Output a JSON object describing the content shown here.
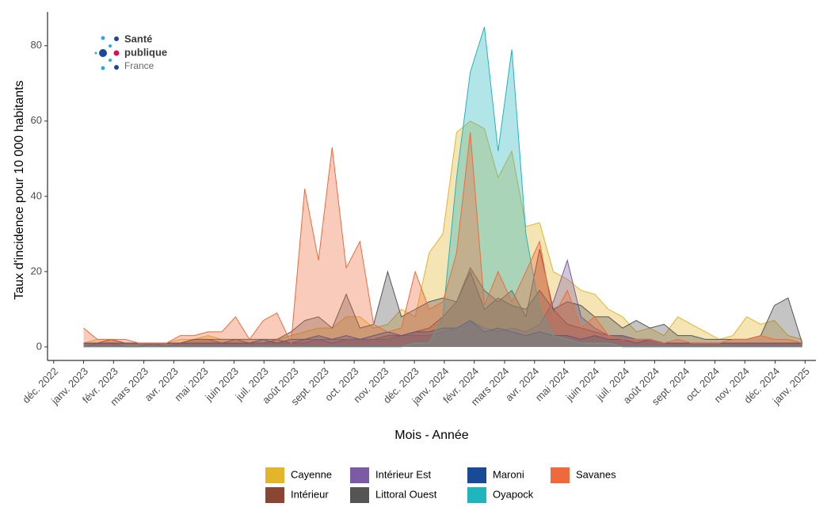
{
  "chart_data": {
    "type": "area",
    "logo": {
      "lines": [
        "Santé",
        "publique",
        "France"
      ]
    },
    "x_label": "Mois - Année",
    "y_label": "Taux d'incidence pour 10 000 habitants",
    "x": [
      2023.0,
      2023.038,
      2023.077,
      2023.115,
      2023.153,
      2023.192,
      2023.23,
      2023.268,
      2023.306,
      2023.345,
      2023.383,
      2023.421,
      2023.46,
      2023.498,
      2023.536,
      2023.575,
      2023.613,
      2023.651,
      2023.689,
      2023.728,
      2023.766,
      2023.804,
      2023.843,
      2023.881,
      2023.919,
      2023.958,
      2023.996,
      2024.034,
      2024.072,
      2024.111,
      2024.149,
      2024.187,
      2024.226,
      2024.264,
      2024.302,
      2024.341,
      2024.379,
      2024.417,
      2024.455,
      2024.494,
      2024.532,
      2024.57,
      2024.609,
      2024.647,
      2024.685,
      2024.724,
      2024.762,
      2024.8,
      2024.838,
      2024.877,
      2024.915,
      2024.953,
      2024.992
    ],
    "series": [
      {
        "name": "Cayenne",
        "color": "#e3b52a",
        "values": [
          1,
          2,
          2,
          1,
          1,
          1,
          1,
          2,
          2,
          3,
          2,
          2,
          2,
          2,
          2,
          3,
          4,
          5,
          5,
          8,
          8,
          5,
          6,
          10,
          8,
          25,
          30,
          57,
          60,
          58,
          45,
          52,
          32,
          33,
          20,
          18,
          15,
          14,
          10,
          8,
          4,
          5,
          3,
          8,
          6,
          4,
          2,
          3,
          8,
          6,
          7,
          3,
          2
        ]
      },
      {
        "name": "Intérieur",
        "color": "#8b4533",
        "values": [
          1,
          1,
          2,
          1,
          1,
          1,
          1,
          1,
          2,
          2,
          1,
          2,
          1,
          1,
          2,
          1,
          2,
          2,
          1,
          2,
          2,
          2,
          3,
          3,
          4,
          5,
          8,
          12,
          21,
          15,
          12,
          15,
          8,
          26,
          10,
          6,
          5,
          4,
          3,
          3,
          2,
          2,
          1,
          1,
          1,
          1,
          1,
          1,
          1,
          1,
          1,
          1,
          1
        ]
      },
      {
        "name": "Intérieur Est",
        "color": "#7b5ba6",
        "values": [
          0,
          1,
          1,
          0,
          0,
          1,
          0,
          1,
          1,
          1,
          1,
          1,
          1,
          1,
          1,
          1,
          1,
          2,
          2,
          2,
          2,
          2,
          2,
          3,
          3,
          3,
          4,
          5,
          7,
          5,
          4,
          5,
          4,
          6,
          12,
          23,
          8,
          5,
          3,
          3,
          2,
          2,
          1,
          1,
          1,
          1,
          1,
          1,
          1,
          1,
          1,
          1,
          1
        ]
      },
      {
        "name": "Littoral Ouest",
        "color": "#555555",
        "values": [
          1,
          1,
          1,
          1,
          1,
          1,
          1,
          1,
          2,
          2,
          2,
          2,
          2,
          2,
          2,
          4,
          7,
          8,
          5,
          14,
          5,
          6,
          20,
          8,
          10,
          12,
          13,
          12,
          20,
          10,
          13,
          11,
          10,
          15,
          10,
          12,
          11,
          8,
          8,
          5,
          7,
          5,
          6,
          3,
          3,
          2,
          2,
          2,
          2,
          3,
          11,
          13,
          1
        ]
      },
      {
        "name": "Maroni",
        "color": "#1a4a96",
        "values": [
          1,
          1,
          1,
          1,
          1,
          1,
          1,
          1,
          1,
          1,
          1,
          1,
          1,
          2,
          1,
          2,
          2,
          3,
          2,
          3,
          2,
          3,
          4,
          3,
          4,
          4,
          5,
          5,
          7,
          4,
          5,
          4,
          3,
          4,
          3,
          3,
          2,
          3,
          2,
          2,
          1,
          2,
          1,
          1,
          1,
          1,
          1,
          1,
          1,
          1,
          1,
          1,
          1
        ]
      },
      {
        "name": "Oyapock",
        "color": "#1fb5bd",
        "values": [
          0,
          0,
          0,
          0,
          0,
          0,
          0,
          0,
          0,
          0,
          0,
          0,
          0,
          0,
          0,
          0,
          0,
          0,
          0,
          0,
          0,
          0,
          0,
          0,
          1,
          1,
          8,
          45,
          73,
          85,
          52,
          79,
          30,
          10,
          3,
          2,
          1,
          1,
          1,
          0,
          0,
          0,
          0,
          0,
          0,
          0,
          0,
          0,
          0,
          0,
          0,
          0,
          0
        ]
      },
      {
        "name": "Savanes",
        "color": "#ee6a3c",
        "values": [
          5,
          2,
          2,
          2,
          1,
          1,
          1,
          3,
          3,
          4,
          4,
          8,
          2,
          7,
          9,
          1,
          42,
          23,
          53,
          21,
          28,
          6,
          4,
          5,
          20,
          10,
          12,
          25,
          57,
          11,
          20,
          12,
          20,
          28,
          8,
          15,
          5,
          8,
          3,
          2,
          2,
          2,
          1,
          2,
          1,
          1,
          1,
          2,
          2,
          3,
          2,
          2,
          1
        ]
      }
    ],
    "xlim": [
      2022.9,
      2025.03
    ],
    "xticks": [
      {
        "value": 2022.917,
        "label": "déc. 2022"
      },
      {
        "value": 2023.0,
        "label": "janv. 2023"
      },
      {
        "value": 2023.083,
        "label": "févr. 2023"
      },
      {
        "value": 2023.167,
        "label": "mars 2023"
      },
      {
        "value": 2023.25,
        "label": "avr. 2023"
      },
      {
        "value": 2023.333,
        "label": "mai 2023"
      },
      {
        "value": 2023.417,
        "label": "juin 2023"
      },
      {
        "value": 2023.5,
        "label": "juil. 2023"
      },
      {
        "value": 2023.583,
        "label": "août 2023"
      },
      {
        "value": 2023.667,
        "label": "sept. 2023"
      },
      {
        "value": 2023.75,
        "label": "oct. 2023"
      },
      {
        "value": 2023.833,
        "label": "nov. 2023"
      },
      {
        "value": 2023.917,
        "label": "déc. 2023"
      },
      {
        "value": 2024.0,
        "label": "janv. 2024"
      },
      {
        "value": 2024.083,
        "label": "févr. 2024"
      },
      {
        "value": 2024.167,
        "label": "mars 2024"
      },
      {
        "value": 2024.25,
        "label": "avr. 2024"
      },
      {
        "value": 2024.333,
        "label": "mai 2024"
      },
      {
        "value": 2024.417,
        "label": "juin 2024"
      },
      {
        "value": 2024.5,
        "label": "juil. 2024"
      },
      {
        "value": 2024.583,
        "label": "août 2024"
      },
      {
        "value": 2024.667,
        "label": "sept. 2024"
      },
      {
        "value": 2024.75,
        "label": "oct. 2024"
      },
      {
        "value": 2024.833,
        "label": "nov. 2024"
      },
      {
        "value": 2024.917,
        "label": "déc. 2024"
      },
      {
        "value": 2025.0,
        "label": "janv. 2025"
      }
    ],
    "ylim": [
      -3.6,
      89
    ],
    "yticks": [
      0,
      20,
      40,
      60,
      80
    ],
    "grid": false,
    "legend": "bottom"
  }
}
